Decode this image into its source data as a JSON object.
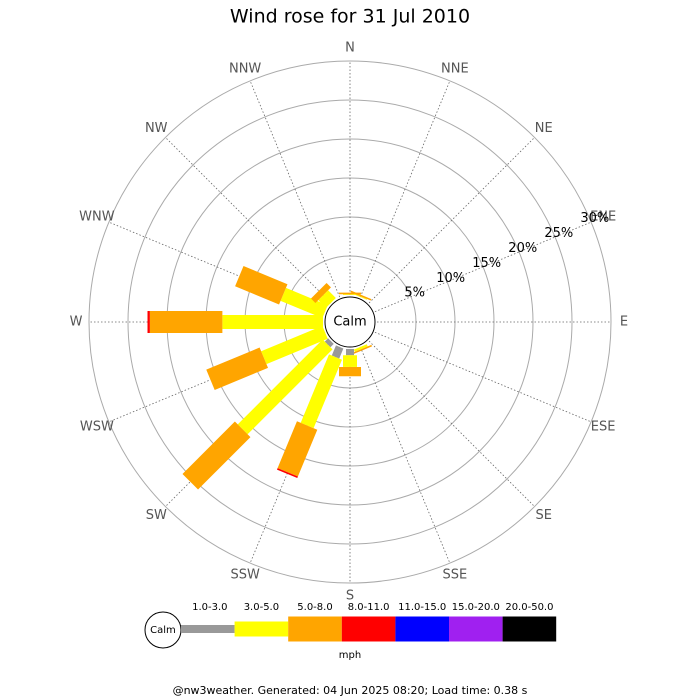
{
  "chart_data": {
    "type": "windrose",
    "title": "Wind rose for 31 Jul 2010",
    "calm_label": "Calm",
    "unit": "mph",
    "footer": "@nw3weather. Generated: 04 Jun 2025 08:20; Load time: 0.38 s",
    "categories": [
      "N",
      "NNE",
      "NE",
      "ENE",
      "E",
      "ESE",
      "SE",
      "SSE",
      "S",
      "SSW",
      "SW",
      "WSW",
      "W",
      "WNW",
      "NW",
      "NNW"
    ],
    "rlim": [
      0,
      30
    ],
    "rticks": [
      {
        "value": 5,
        "label": "5%"
      },
      {
        "value": 10,
        "label": "10%"
      },
      {
        "value": 15,
        "label": "15%"
      },
      {
        "value": 20,
        "label": "20%"
      },
      {
        "value": 25,
        "label": "25%"
      },
      {
        "value": 30,
        "label": "30%"
      }
    ],
    "series": [
      {
        "name": "1.0-3.0",
        "color": "#999999",
        "values": [
          0,
          0,
          0,
          0,
          0,
          0,
          0,
          0,
          0.8,
          1.4,
          0.6,
          0,
          0,
          0,
          0,
          0
        ]
      },
      {
        "name": "3.0-5.0",
        "color": "#ffff00",
        "values": [
          0.1,
          0.1,
          0,
          0,
          0,
          0,
          0,
          0.3,
          1.5,
          9.5,
          15.4,
          8.5,
          12.9,
          5.8,
          1.4,
          0
        ]
      },
      {
        "name": "5.0-8.0",
        "color": "#ffa500",
        "values": [
          0.2,
          0.2,
          0,
          0,
          0,
          0,
          0,
          0.2,
          1.2,
          6.5,
          9.5,
          7.4,
          9.3,
          6.1,
          0.8,
          0
        ]
      },
      {
        "name": "8.0-11.0",
        "color": "#ff0000",
        "values": [
          0,
          0,
          0,
          0,
          0,
          0,
          0,
          0,
          0,
          0.2,
          0,
          0,
          0.3,
          0,
          0,
          0
        ]
      },
      {
        "name": "11.0-15.0",
        "color": "#0000ff",
        "values": [
          0,
          0,
          0,
          0,
          0,
          0,
          0,
          0,
          0,
          0,
          0,
          0,
          0,
          0,
          0,
          0
        ]
      },
      {
        "name": "15.0-20.0",
        "color": "#a020f0",
        "values": [
          0,
          0,
          0,
          0,
          0,
          0,
          0,
          0,
          0,
          0,
          0,
          0,
          0,
          0,
          0,
          0
        ]
      },
      {
        "name": "20.0-50.0",
        "color": "#000000",
        "values": [
          0,
          0,
          0,
          0,
          0,
          0,
          0,
          0,
          0,
          0,
          0,
          0,
          0,
          0,
          0,
          0
        ]
      }
    ]
  }
}
